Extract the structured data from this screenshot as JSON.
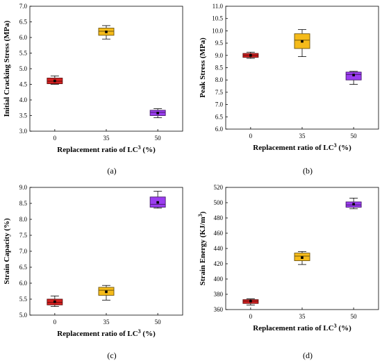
{
  "chart_data": [
    {
      "type": "box",
      "caption": "(a)",
      "xlabel": "Replacement ratio of LC",
      "xlabel_sup": "3",
      "xlabel_suffix": " (%)",
      "ylabel": "Initial Cracking Stress (MPa)",
      "ylabel_sup": "",
      "ylabel_suffix": "",
      "categories": [
        "0",
        "35",
        "50"
      ],
      "ylim": [
        3.0,
        7.0
      ],
      "yticks": [
        3.0,
        3.5,
        4.0,
        4.5,
        5.0,
        5.5,
        6.0,
        6.5,
        7.0
      ],
      "tick_decimals": 1,
      "boxes": [
        {
          "min": 4.5,
          "q1": 4.52,
          "median": 4.6,
          "q3": 4.7,
          "max": 4.77,
          "mean": 4.61,
          "color": "#d42020"
        },
        {
          "min": 5.95,
          "q1": 6.07,
          "median": 6.2,
          "q3": 6.3,
          "max": 6.38,
          "mean": 6.18,
          "color": "#f5bb1a"
        },
        {
          "min": 3.43,
          "q1": 3.5,
          "median": 3.6,
          "q3": 3.67,
          "max": 3.72,
          "mean": 3.58,
          "color": "#9b3df0"
        }
      ]
    },
    {
      "type": "box",
      "caption": "(b)",
      "xlabel": "Replacement ratio of LC",
      "xlabel_sup": "3",
      "xlabel_suffix": " (%)",
      "ylabel": "Peak Stress (MPa)",
      "ylabel_sup": "",
      "ylabel_suffix": "",
      "categories": [
        "0",
        "35",
        "50"
      ],
      "ylim": [
        6.0,
        11.0
      ],
      "yticks": [
        6.0,
        6.5,
        7.0,
        7.5,
        8.0,
        8.5,
        9.0,
        9.5,
        10.0,
        10.5,
        11.0
      ],
      "tick_decimals": 1,
      "boxes": [
        {
          "min": 8.88,
          "q1": 8.92,
          "median": 9.0,
          "q3": 9.08,
          "max": 9.13,
          "mean": 9.0,
          "color": "#d42020"
        },
        {
          "min": 8.95,
          "q1": 9.28,
          "median": 9.62,
          "q3": 9.88,
          "max": 10.05,
          "mean": 9.57,
          "color": "#f5bb1a"
        },
        {
          "min": 7.82,
          "q1": 8.0,
          "median": 8.22,
          "q3": 8.32,
          "max": 8.35,
          "mean": 8.2,
          "color": "#9b3df0"
        }
      ]
    },
    {
      "type": "box",
      "caption": "(c)",
      "xlabel": "Replacement ratio of LC",
      "xlabel_sup": "3",
      "xlabel_suffix": " (%)",
      "ylabel": "Strain Capacity (%)",
      "ylabel_sup": "",
      "ylabel_suffix": "",
      "categories": [
        "0",
        "35",
        "50"
      ],
      "ylim": [
        5.0,
        9.0
      ],
      "yticks": [
        5.0,
        5.5,
        6.0,
        6.5,
        7.0,
        7.5,
        8.0,
        8.5,
        9.0
      ],
      "tick_decimals": 1,
      "boxes": [
        {
          "min": 5.27,
          "q1": 5.32,
          "median": 5.4,
          "q3": 5.5,
          "max": 5.6,
          "mean": 5.42,
          "color": "#d42020"
        },
        {
          "min": 5.47,
          "q1": 5.62,
          "median": 5.78,
          "q3": 5.87,
          "max": 5.93,
          "mean": 5.73,
          "color": "#f5bb1a"
        },
        {
          "min": 8.35,
          "q1": 8.38,
          "median": 8.47,
          "q3": 8.7,
          "max": 8.88,
          "mean": 8.53,
          "color": "#9b3df0"
        }
      ]
    },
    {
      "type": "box",
      "caption": "(d)",
      "xlabel": "Replacement ratio of LC",
      "xlabel_sup": "3",
      "xlabel_suffix": " (%)",
      "ylabel": "Strain Energy (KJ/m",
      "ylabel_sup": "3",
      "ylabel_suffix": ")",
      "categories": [
        "0",
        "35",
        "50"
      ],
      "ylim": [
        360,
        520
      ],
      "yticks": [
        360,
        380,
        400,
        420,
        440,
        460,
        480,
        500,
        520
      ],
      "tick_decimals": 0,
      "boxes": [
        {
          "min": 366,
          "q1": 368,
          "median": 371,
          "q3": 373,
          "max": 374,
          "mean": 371,
          "color": "#d42020"
        },
        {
          "min": 419,
          "q1": 424,
          "median": 430,
          "q3": 434,
          "max": 436,
          "mean": 428,
          "color": "#f5bb1a"
        },
        {
          "min": 492,
          "q1": 494,
          "median": 497,
          "q3": 501,
          "max": 506,
          "mean": 498,
          "color": "#9b3df0"
        }
      ]
    }
  ]
}
